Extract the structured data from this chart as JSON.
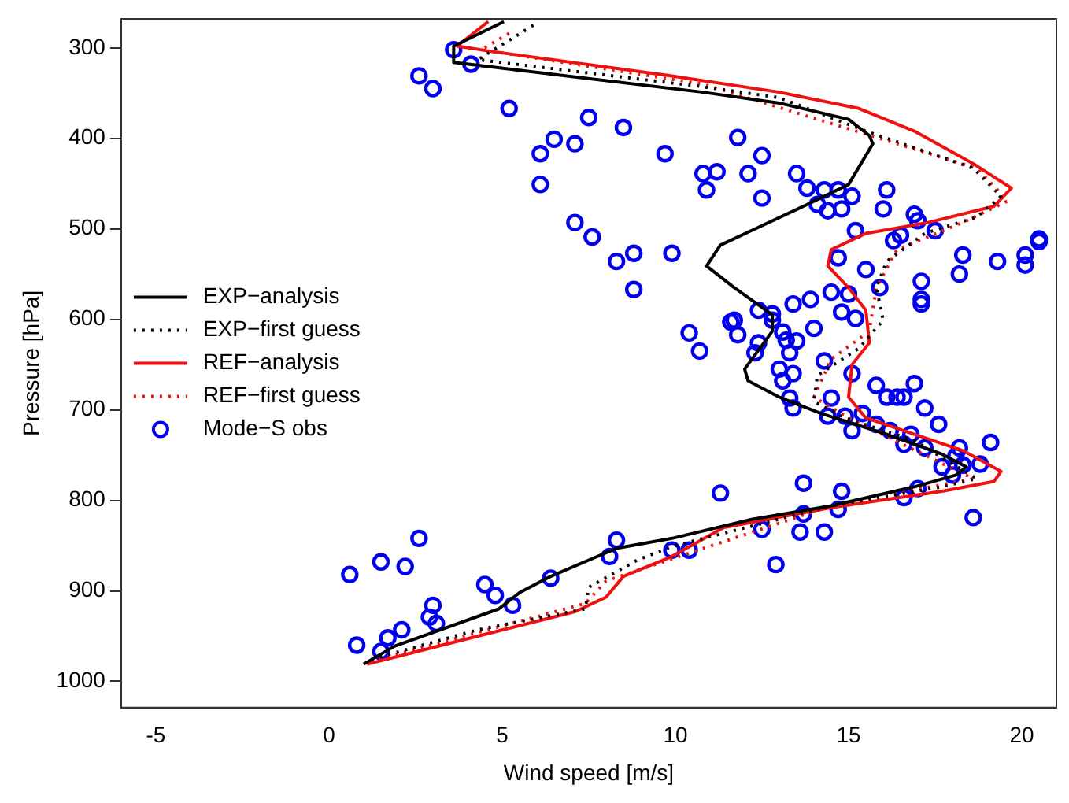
{
  "chart_data": {
    "type": "scatter",
    "xlabel": "Wind speed [m/s]",
    "ylabel": "Pressure [hPa]",
    "xlim": [
      -6,
      21
    ],
    "ylim": [
      1029,
      268
    ],
    "xticks": [
      -5,
      0,
      5,
      10,
      15,
      20
    ],
    "yticks": [
      300,
      400,
      500,
      600,
      700,
      800,
      900,
      1000
    ],
    "legend": "left",
    "series": [
      {
        "name": "EXP−analysis",
        "type": "line",
        "line_style": "solid",
        "marker": "none",
        "color": "#000000",
        "x": [
          5.05,
          3.6,
          3.6,
          10.8,
          13.0,
          15.0,
          15.6,
          15.7,
          15.0,
          13.7,
          12.3,
          11.3,
          10.9,
          11.7,
          12.8,
          12.8,
          12.0,
          12.1,
          13.0,
          14.2,
          16.1,
          17.7,
          18.4,
          18.1,
          16.9,
          14.5,
          12.2,
          9.9,
          8.3,
          6.4,
          5.5,
          4.9,
          1.9,
          1.0
        ],
        "values": [
          271,
          298,
          316,
          349,
          361,
          379,
          397,
          406,
          451,
          475,
          500,
          518,
          541,
          565,
          595,
          613,
          655,
          668,
          686,
          704,
          727,
          749,
          763,
          772,
          785,
          806,
          821,
          842,
          853,
          884,
          902,
          920,
          961,
          981
        ]
      },
      {
        "name": "EXP−first guess",
        "type": "line",
        "line_style": "dotted",
        "marker": "none",
        "color": "#000000",
        "x": [
          5.9,
          4.3,
          10.8,
          13.0,
          15.5,
          18.6,
          19.4,
          18.7,
          17.2,
          16.1,
          15.8,
          16.0,
          15.3,
          14.1,
          14.0,
          14.9,
          16.9,
          18.7,
          17.7,
          14.5,
          9.9,
          8.9,
          7.5,
          7.4,
          4.3,
          1.1
        ],
        "values": [
          275,
          313,
          343,
          355,
          392,
          433,
          464,
          487,
          505,
          536,
          565,
          601,
          632,
          662,
          691,
          709,
          734,
          776,
          785,
          806,
          851,
          866,
          896,
          920,
          943,
          977
        ]
      },
      {
        "name": "REF−analysis",
        "type": "line",
        "line_style": "solid",
        "marker": "none",
        "color": "#ee1111",
        "x": [
          4.6,
          3.7,
          4.7,
          9.9,
          13.0,
          15.3,
          16.9,
          18.6,
          19.7,
          19.2,
          17.3,
          15.5,
          14.5,
          14.4,
          15.0,
          15.5,
          15.6,
          15.1,
          15.0,
          15.5,
          16.9,
          18.3,
          19.4,
          19.2,
          17.7,
          14.5,
          11.4,
          9.9,
          8.5,
          8.0,
          7.1,
          4.3,
          1.1
        ],
        "values": [
          271,
          298,
          304,
          331,
          349,
          367,
          392,
          428,
          455,
          475,
          493,
          505,
          523,
          541,
          565,
          590,
          626,
          650,
          686,
          709,
          727,
          745,
          768,
          779,
          790,
          808,
          830,
          862,
          884,
          907,
          923,
          950,
          981
        ]
      },
      {
        "name": "REF−first guess",
        "type": "line",
        "line_style": "dotted",
        "marker": "none",
        "color": "#ee1111",
        "x": [
          5.2,
          4.4,
          10.8,
          18.7,
          19.6,
          18.3,
          16.4,
          15.8,
          15.6,
          14.5,
          14.0,
          15.0,
          18.6,
          14.5,
          8.0,
          7.4,
          1.1
        ],
        "values": [
          284,
          302,
          340,
          433,
          469,
          493,
          523,
          565,
          613,
          644,
          686,
          709,
          776,
          806,
          889,
          914,
          979
        ]
      },
      {
        "name": "Mode−S obs",
        "type": "scatter",
        "marker": "circle",
        "color": "#0000ee",
        "x": [
          3.6,
          4.1,
          2.6,
          3.0,
          5.2,
          7.5,
          8.5,
          6.5,
          7.1,
          6.1,
          9.7,
          6.1,
          7.1,
          7.6,
          8.3,
          8.8,
          9.9,
          8.8,
          10.4,
          10.7,
          11.8,
          12.5,
          10.8,
          11.2,
          10.9,
          12.1,
          12.5,
          13.5,
          13.8,
          14.3,
          14.7,
          14.1,
          14.4,
          14.8,
          15.1,
          16.1,
          16.0,
          16.9,
          17.0,
          17.5,
          16.5,
          16.3,
          15.2,
          14.7,
          15.5,
          15.9,
          18.3,
          18.2,
          17.1,
          17.1,
          17.1,
          19.3,
          20.1,
          20.1,
          20.5,
          20.5,
          14.5,
          15.0,
          13.9,
          13.4,
          14.8,
          15.2,
          12.4,
          12.8,
          11.6,
          11.7,
          11.8,
          12.8,
          14.0,
          13.1,
          12.3,
          13.2,
          13.5,
          13.3,
          12.4,
          13.0,
          13.4,
          13.1,
          14.3,
          15.1,
          13.3,
          13.4,
          14.5,
          15.8,
          16.1,
          16.4,
          16.6,
          16.9,
          17.2,
          17.6,
          14.4,
          14.9,
          15.4,
          15.1,
          15.8,
          16.2,
          16.8,
          16.6,
          17.2,
          18.2,
          18.1,
          17.7,
          18.0,
          18.3,
          18.8,
          19.1,
          17.0,
          16.6,
          14.8,
          13.7,
          13.7,
          14.7,
          13.6,
          14.3,
          12.5,
          11.3,
          12.9,
          18.6,
          0.6,
          1.5,
          2.2,
          2.6,
          0.8,
          1.7,
          2.1,
          1.5,
          2.9,
          3.0,
          3.1,
          4.5,
          4.8,
          5.3,
          6.4,
          8.1,
          8.3,
          9.9,
          10.4
        ],
        "values": [
          302,
          318,
          331,
          345,
          367,
          377,
          388,
          401,
          406,
          417,
          417,
          451,
          493,
          509,
          536,
          527,
          527,
          567,
          615,
          635,
          399,
          419,
          439,
          437,
          457,
          439,
          466,
          439,
          455,
          457,
          457,
          473,
          480,
          478,
          464,
          457,
          478,
          484,
          491,
          502,
          507,
          513,
          502,
          532,
          545,
          565,
          529,
          550,
          558,
          578,
          583,
          536,
          529,
          540,
          511,
          514,
          570,
          572,
          578,
          583,
          592,
          599,
          590,
          594,
          603,
          601,
          617,
          601,
          610,
          614,
          637,
          623,
          624,
          637,
          626,
          655,
          660,
          668,
          646,
          660,
          687,
          698,
          687,
          673,
          686,
          686,
          686,
          671,
          698,
          716,
          707,
          707,
          704,
          723,
          716,
          723,
          727,
          738,
          742,
          742,
          751,
          763,
          772,
          761,
          760,
          736,
          787,
          797,
          790,
          781,
          815,
          810,
          835,
          835,
          832,
          792,
          871,
          819,
          882,
          868,
          873,
          842,
          960,
          952,
          943,
          967,
          929,
          916,
          936,
          893,
          905,
          916,
          886,
          862,
          844,
          855,
          855
        ]
      }
    ]
  }
}
